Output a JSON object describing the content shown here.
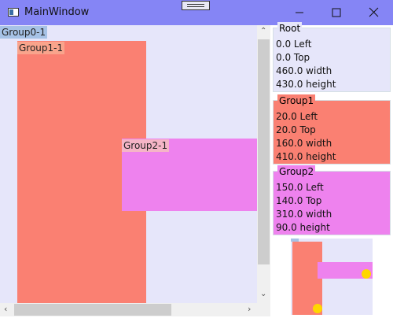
{
  "window": {
    "title": "MainWindow"
  },
  "canvas": {
    "labels": [
      "Group0-1",
      "Group1-1",
      "Group2-1"
    ]
  },
  "panel": {
    "groups": [
      {
        "header": "Root",
        "lines": [
          "0.0 Left",
          "0.0 Top",
          "460.0 width",
          "430.0 height"
        ]
      },
      {
        "header": "Group1",
        "lines": [
          "20.0 Left",
          "20.0 Top",
          "160.0 width",
          "410.0 height"
        ]
      },
      {
        "header": "Group2",
        "lines": [
          "150.0 Left",
          "140.0 Top",
          "310.0 width",
          "90.0 height"
        ]
      }
    ]
  }
}
